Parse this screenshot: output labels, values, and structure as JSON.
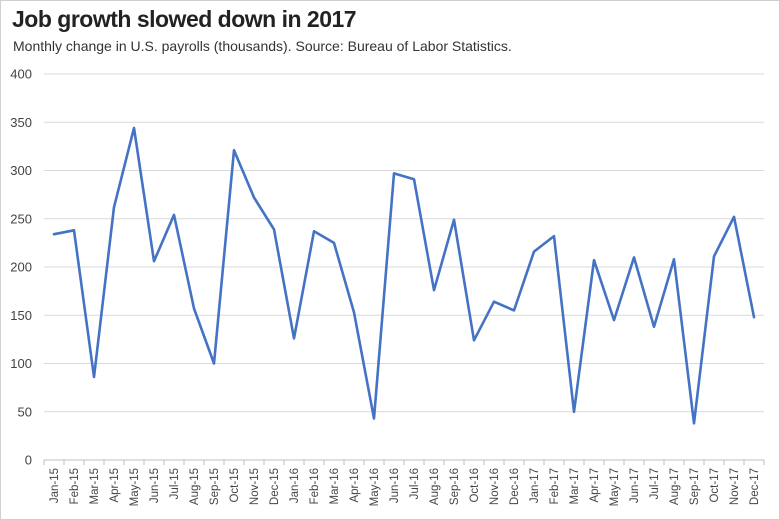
{
  "title": "Job growth slowed down in 2017",
  "subtitle": "Monthly change in U.S. payrolls (thousands).  Source: Bureau of Labor Statistics.",
  "colors": {
    "line": "#4472c4",
    "grid": "#d9d9d9",
    "axis": "#bfbfbf"
  },
  "chart_data": {
    "type": "line",
    "title": "Job growth slowed down in 2017",
    "subtitle": "Monthly change in U.S. payrolls (thousands).  Source: Bureau of Labor Statistics.",
    "xlabel": "",
    "ylabel": "",
    "ylim": [
      0,
      400
    ],
    "yticks": [
      0,
      50,
      100,
      150,
      200,
      250,
      300,
      350,
      400
    ],
    "grid": true,
    "categories": [
      "Jan-15",
      "Feb-15",
      "Mar-15",
      "Apr-15",
      "May-15",
      "Jun-15",
      "Jul-15",
      "Aug-15",
      "Sep-15",
      "Oct-15",
      "Nov-15",
      "Dec-15",
      "Jan-16",
      "Feb-16",
      "Mar-16",
      "Apr-16",
      "May-16",
      "Jun-16",
      "Jul-16",
      "Aug-16",
      "Sep-16",
      "Oct-16",
      "Nov-16",
      "Dec-16",
      "Jan-17",
      "Feb-17",
      "Mar-17",
      "Apr-17",
      "May-17",
      "Jun-17",
      "Jul-17",
      "Aug-17",
      "Sep-17",
      "Oct-17",
      "Nov-17",
      "Dec-17"
    ],
    "values": [
      234,
      238,
      86,
      262,
      344,
      206,
      254,
      157,
      100,
      321,
      272,
      239,
      126,
      237,
      225,
      153,
      43,
      297,
      291,
      176,
      249,
      124,
      164,
      155,
      216,
      232,
      50,
      207,
      145,
      210,
      138,
      208,
      38,
      211,
      252,
      148
    ]
  }
}
